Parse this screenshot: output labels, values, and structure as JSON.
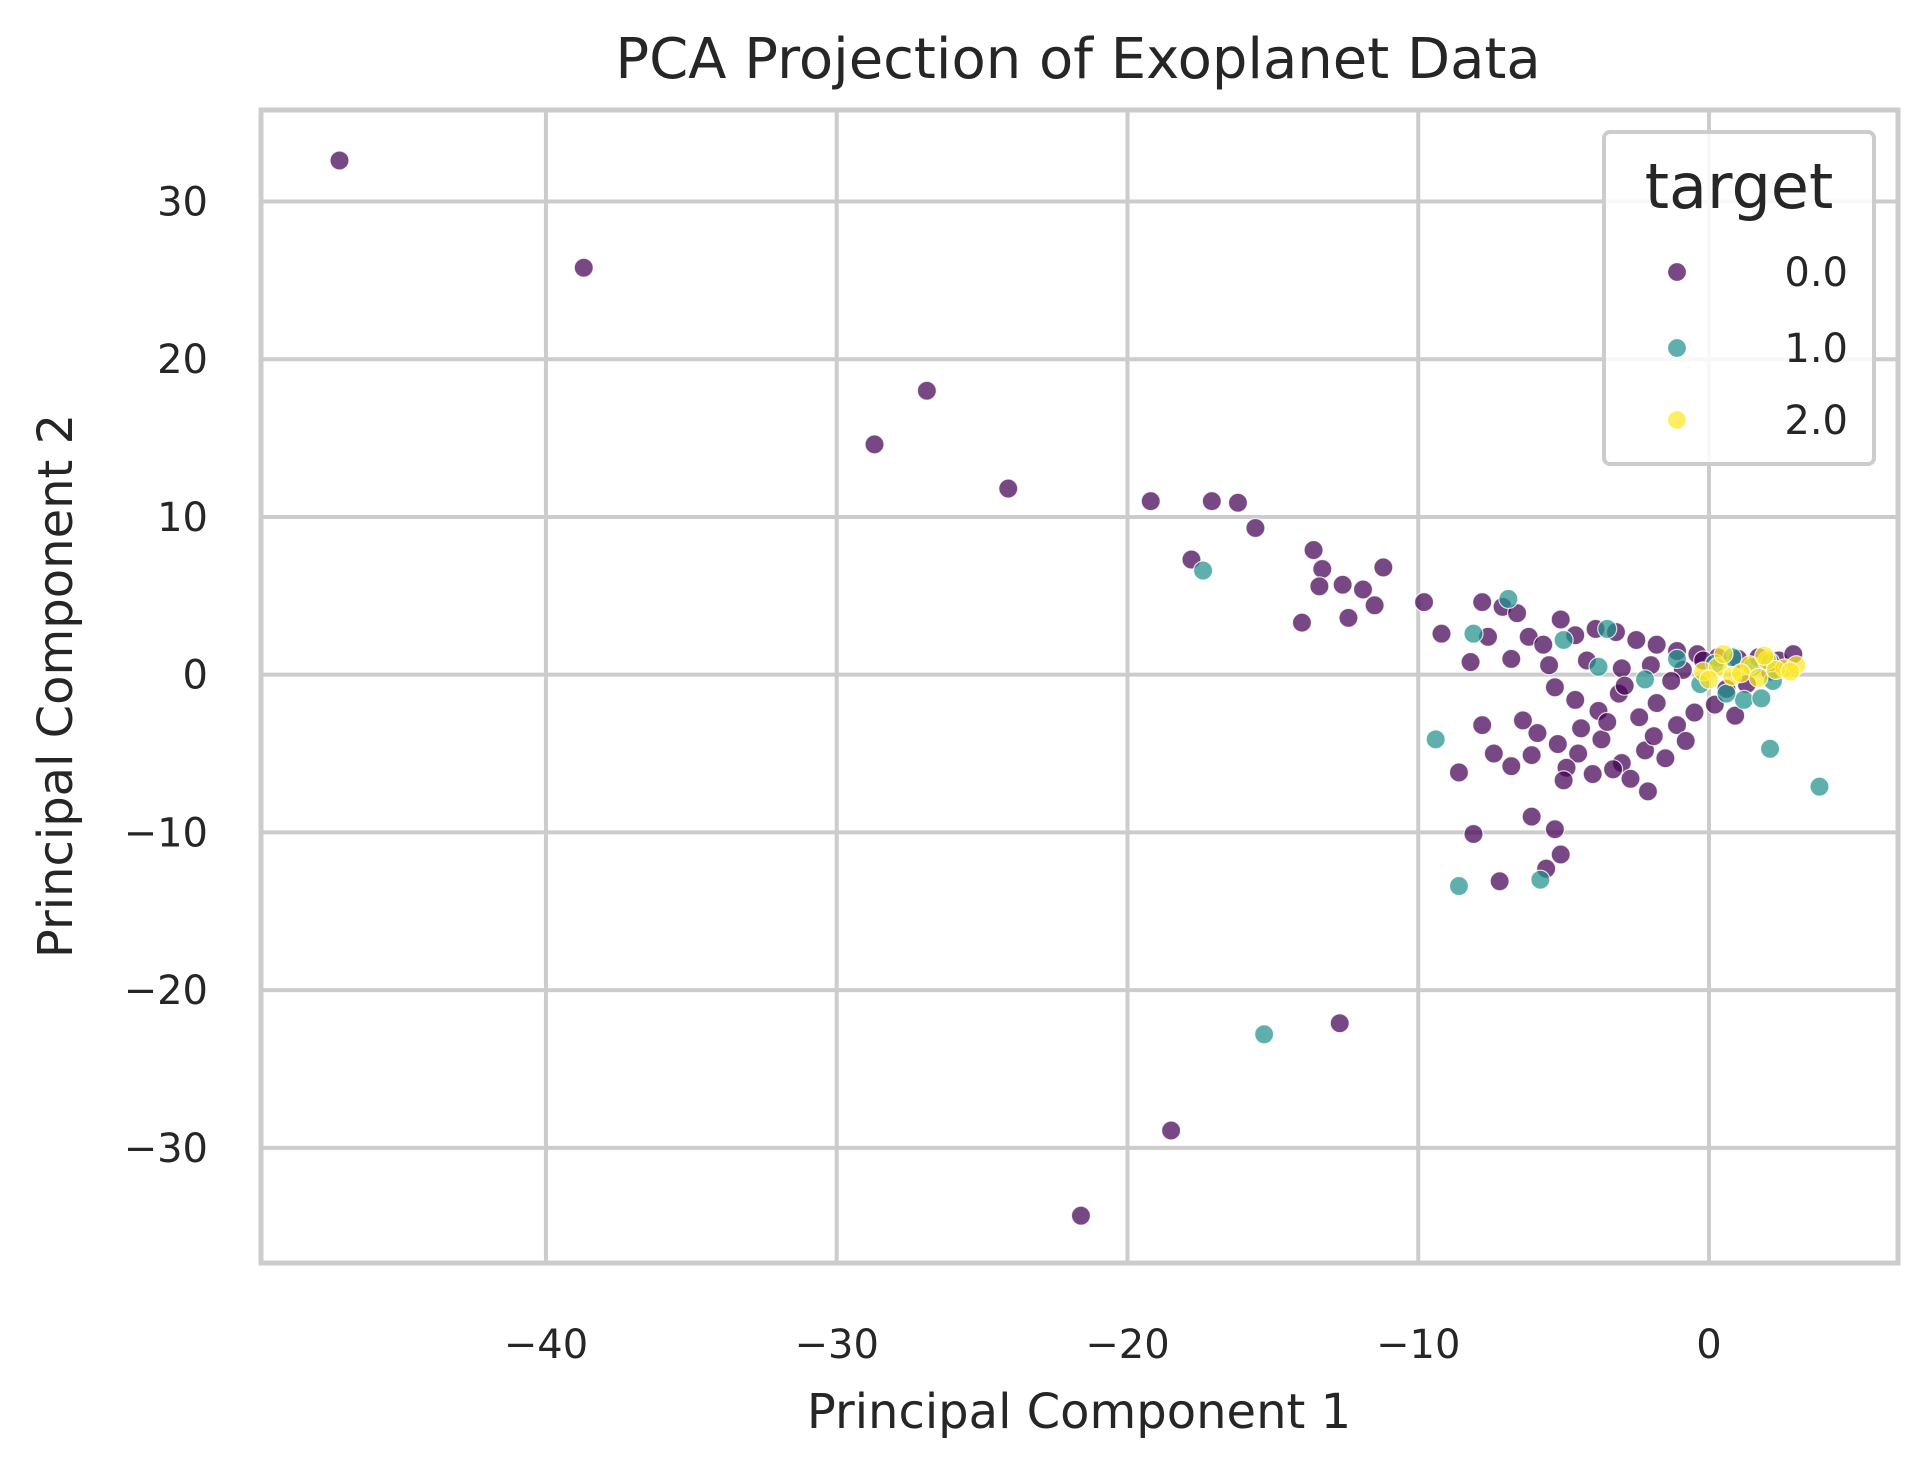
{
  "chart_data": {
    "type": "scatter",
    "title": "PCA Projection of Exoplanet Data",
    "xlabel": "Principal Component 1",
    "ylabel": "Principal Component 2",
    "xlim": [
      -49.8,
      6.5
    ],
    "ylim": [
      -37.3,
      35.8
    ],
    "xticks": [
      -40,
      -30,
      -20,
      -10,
      0
    ],
    "xtick_labels": [
      "−40",
      "−30",
      "−20",
      "−10",
      "0"
    ],
    "yticks": [
      -30,
      -20,
      -10,
      0,
      10,
      20,
      30
    ],
    "ytick_labels": [
      "−30",
      "−20",
      "−10",
      "0",
      "10",
      "20",
      "30"
    ],
    "grid": true,
    "legend": {
      "title": "target",
      "position": "top-right"
    },
    "series": [
      {
        "name": "0.0",
        "color": "#440154",
        "points": [
          [
            -47.1,
            32.6
          ],
          [
            -38.7,
            25.8
          ],
          [
            -26.9,
            18.0
          ],
          [
            -28.7,
            14.6
          ],
          [
            -24.1,
            11.8
          ],
          [
            -19.2,
            11.0
          ],
          [
            -17.1,
            11.0
          ],
          [
            -16.2,
            10.9
          ],
          [
            -15.6,
            9.3
          ],
          [
            -17.8,
            7.3
          ],
          [
            -13.6,
            7.9
          ],
          [
            -13.3,
            6.7
          ],
          [
            -11.2,
            6.8
          ],
          [
            -13.4,
            5.6
          ],
          [
            -12.6,
            5.7
          ],
          [
            -11.9,
            5.4
          ],
          [
            -11.5,
            4.4
          ],
          [
            -12.4,
            3.6
          ],
          [
            -14.0,
            3.3
          ],
          [
            -9.8,
            4.6
          ],
          [
            -9.2,
            2.6
          ],
          [
            -8.2,
            0.8
          ],
          [
            -7.8,
            4.6
          ],
          [
            -7.6,
            2.4
          ],
          [
            -7.1,
            4.3
          ],
          [
            -6.6,
            3.9
          ],
          [
            -6.2,
            2.4
          ],
          [
            -5.7,
            1.9
          ],
          [
            -5.1,
            3.5
          ],
          [
            -4.6,
            2.5
          ],
          [
            -3.9,
            2.9
          ],
          [
            -3.2,
            2.7
          ],
          [
            -2.5,
            2.2
          ],
          [
            -1.8,
            1.9
          ],
          [
            -1.1,
            1.5
          ],
          [
            -0.4,
            1.3
          ],
          [
            0.3,
            1.1
          ],
          [
            1.0,
            1.0
          ],
          [
            1.7,
            1.1
          ],
          [
            2.4,
            0.9
          ],
          [
            2.9,
            1.3
          ],
          [
            -6.8,
            1.0
          ],
          [
            -5.5,
            0.6
          ],
          [
            -4.2,
            0.9
          ],
          [
            -3.0,
            0.4
          ],
          [
            -2.0,
            0.6
          ],
          [
            -0.9,
            0.3
          ],
          [
            -5.3,
            -0.8
          ],
          [
            -4.6,
            -1.6
          ],
          [
            -3.8,
            -2.3
          ],
          [
            -3.1,
            -1.2
          ],
          [
            -2.4,
            -2.7
          ],
          [
            -1.8,
            -1.8
          ],
          [
            -1.1,
            -3.2
          ],
          [
            -0.5,
            -2.4
          ],
          [
            0.2,
            -1.9
          ],
          [
            0.9,
            -2.6
          ],
          [
            -6.4,
            -2.9
          ],
          [
            -5.9,
            -3.7
          ],
          [
            -5.2,
            -4.4
          ],
          [
            -4.5,
            -5.0
          ],
          [
            -3.7,
            -4.1
          ],
          [
            -3.0,
            -5.6
          ],
          [
            -2.2,
            -4.8
          ],
          [
            -1.5,
            -5.3
          ],
          [
            -0.8,
            -4.2
          ],
          [
            -4.9,
            -5.9
          ],
          [
            -4.0,
            -6.3
          ],
          [
            -2.7,
            -6.6
          ],
          [
            -2.1,
            -7.4
          ],
          [
            -5.0,
            -6.7
          ],
          [
            -7.8,
            -3.2
          ],
          [
            -7.4,
            -5.0
          ],
          [
            -6.8,
            -5.8
          ],
          [
            -6.1,
            -5.1
          ],
          [
            -8.6,
            -6.2
          ],
          [
            -6.1,
            -9.0
          ],
          [
            -8.1,
            -10.1
          ],
          [
            -5.3,
            -9.8
          ],
          [
            -5.1,
            -11.4
          ],
          [
            -5.6,
            -12.3
          ],
          [
            -7.2,
            -13.1
          ],
          [
            -12.7,
            -22.1
          ],
          [
            -18.5,
            -28.9
          ],
          [
            -21.6,
            -34.3
          ],
          [
            -3.5,
            -3.0
          ],
          [
            -2.9,
            -0.7
          ],
          [
            -1.3,
            -0.4
          ],
          [
            -0.2,
            0.9
          ],
          [
            1.3,
            -0.6
          ],
          [
            2.1,
            0.2
          ],
          [
            0.6,
            -0.9
          ],
          [
            -4.4,
            -3.4
          ],
          [
            -3.3,
            -6.0
          ],
          [
            -1.9,
            -3.9
          ]
        ]
      },
      {
        "name": "1.0",
        "color": "#21918c",
        "points": [
          [
            -17.4,
            6.6
          ],
          [
            -8.1,
            2.6
          ],
          [
            -6.9,
            4.8
          ],
          [
            -5.0,
            2.2
          ],
          [
            -3.5,
            2.9
          ],
          [
            -1.1,
            1.0
          ],
          [
            0.2,
            0.7
          ],
          [
            0.8,
            1.1
          ],
          [
            1.5,
            0.5
          ],
          [
            2.2,
            -0.4
          ],
          [
            1.2,
            -1.6
          ],
          [
            2.1,
            0.8
          ],
          [
            -0.3,
            -0.6
          ],
          [
            1.8,
            -1.5
          ],
          [
            -3.8,
            0.5
          ],
          [
            -9.4,
            -4.1
          ],
          [
            -8.6,
            -13.4
          ],
          [
            -5.8,
            -13.0
          ],
          [
            -15.3,
            -22.8
          ],
          [
            2.1,
            -4.7
          ],
          [
            3.8,
            -7.1
          ],
          [
            0.6,
            -1.2
          ],
          [
            -2.2,
            -0.3
          ]
        ]
      },
      {
        "name": "2.0",
        "color": "#fde725",
        "points": [
          [
            -0.2,
            0.2
          ],
          [
            0.3,
            0.5
          ],
          [
            0.8,
            -0.1
          ],
          [
            1.4,
            0.6
          ],
          [
            2.0,
            0.9
          ],
          [
            2.6,
            0.4
          ],
          [
            3.0,
            0.6
          ],
          [
            0.5,
            1.3
          ],
          [
            1.1,
            0.1
          ],
          [
            1.7,
            -0.2
          ],
          [
            2.3,
            0.3
          ],
          [
            0.0,
            -0.3
          ],
          [
            1.9,
            1.2
          ],
          [
            2.8,
            0.2
          ]
        ]
      }
    ]
  }
}
